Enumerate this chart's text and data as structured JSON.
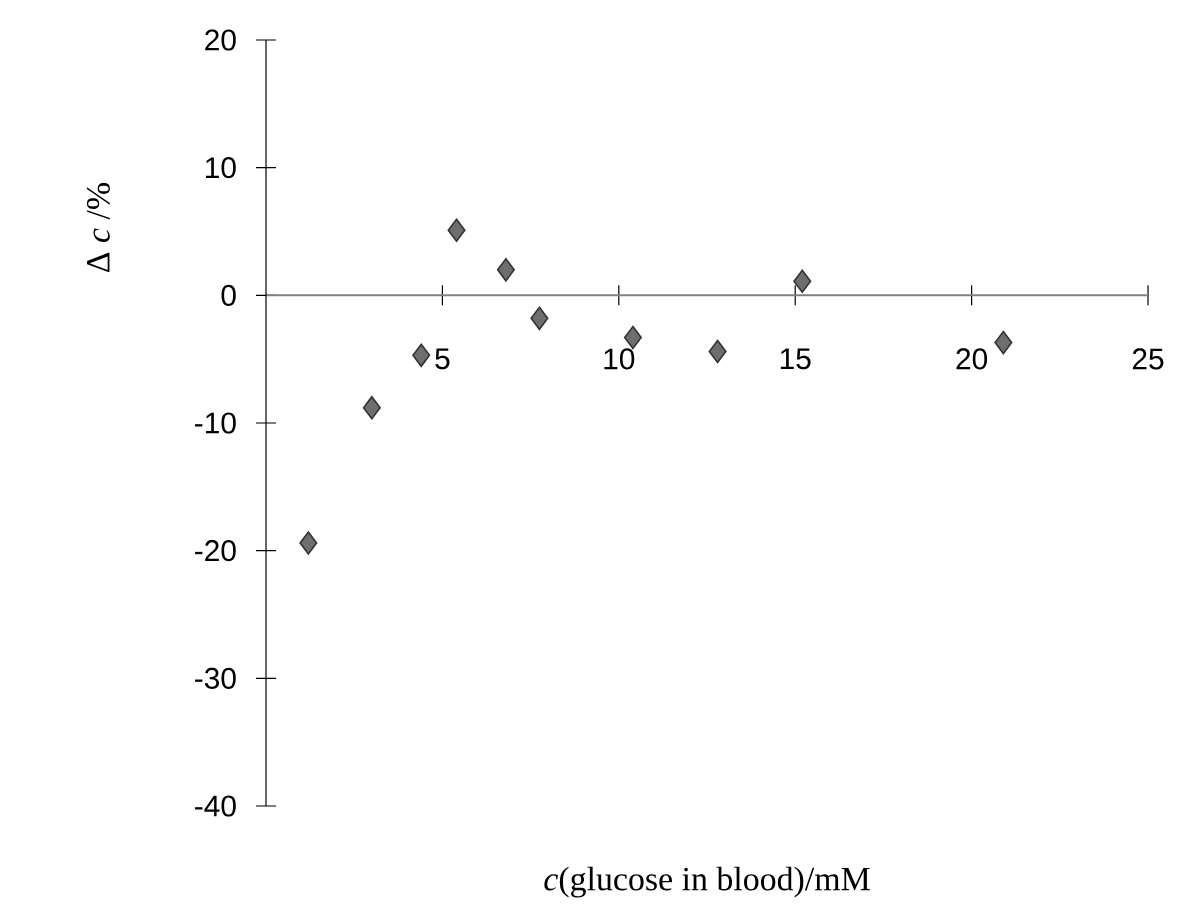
{
  "chart_data": {
    "type": "scatter",
    "xlabel": "*c*(glucose in blood)/mM",
    "ylabel": "Δ *c* /%",
    "x": [
      1.2,
      3.0,
      4.4,
      5.4,
      6.8,
      7.75,
      10.4,
      12.8,
      15.2,
      20.9
    ],
    "values": [
      -19.4,
      -8.8,
      -4.7,
      5.1,
      2.0,
      -1.8,
      -3.3,
      -4.4,
      1.1,
      -3.7
    ],
    "color": "#6e6e6e",
    "marker": "diamond",
    "grid": false,
    "xlim": [
      0,
      25
    ],
    "ylim": [
      -40,
      20
    ],
    "xticks": [
      5,
      10,
      15,
      20,
      25
    ],
    "yticks": [
      -40,
      -30,
      -20,
      -10,
      0,
      10,
      20
    ]
  }
}
